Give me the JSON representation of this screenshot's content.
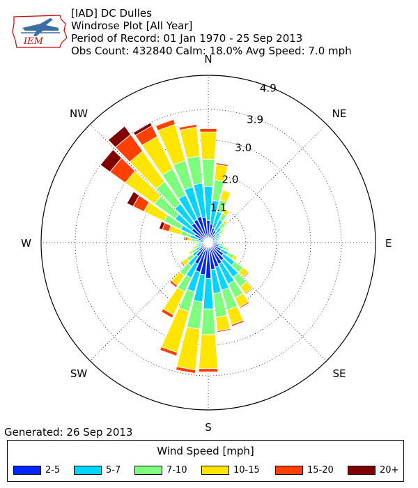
{
  "header": {
    "line1": "[IAD] DC Dulles",
    "line2": "Windrose Plot [All Year]",
    "line3": "Period of Record: 01 Jan 1970 - 25 Sep 2013",
    "line4": "Obs Count: 432840 Calm: 18.0% Avg Speed: 7.0 mph"
  },
  "logo": {
    "text": "IEM",
    "icon": "iem-iowa-logo-icon"
  },
  "footer": {
    "generated": "Generated: 26 Sep 2013"
  },
  "legend": {
    "title": "Wind Speed [mph]"
  },
  "chart_data": {
    "type": "windrose",
    "directions": [
      "N",
      "NE",
      "E",
      "SE",
      "S",
      "SW",
      "W",
      "NW"
    ],
    "radial_ticks": [
      "1.1",
      "2.0",
      "3.0",
      "3.9",
      "4.9"
    ],
    "radial_tick_values": [
      1.1,
      2.0,
      3.0,
      3.9,
      4.9
    ],
    "rmax": 4.9,
    "bins": [
      {
        "label": "2-5",
        "color": "#0026ff"
      },
      {
        "label": "5-7",
        "color": "#00d5ff"
      },
      {
        "label": "7-10",
        "color": "#7dff7d"
      },
      {
        "label": "10-15",
        "color": "#ffe500"
      },
      {
        "label": "15-20",
        "color": "#ff4000"
      },
      {
        "label": "20+",
        "color": "#800000"
      }
    ],
    "sector_directions_deg": [
      0,
      10,
      20,
      30,
      40,
      50,
      60,
      70,
      80,
      90,
      100,
      110,
      120,
      130,
      140,
      150,
      160,
      170,
      180,
      190,
      200,
      210,
      220,
      230,
      240,
      250,
      260,
      270,
      280,
      290,
      300,
      310,
      320,
      330,
      340,
      350
    ],
    "cumulative": [
      [
        0.65,
        1.65,
        2.45,
        3.25,
        3.35,
        3.35
      ],
      [
        0.55,
        1.25,
        1.85,
        2.3,
        2.35,
        2.35
      ],
      [
        0.45,
        0.95,
        1.3,
        1.6,
        1.62,
        1.62
      ],
      [
        0.4,
        0.75,
        0.95,
        1.1,
        1.12,
        1.12
      ],
      [
        0.3,
        0.55,
        0.72,
        0.8,
        0.82,
        0.82
      ],
      [
        0.25,
        0.42,
        0.52,
        0.58,
        0.58,
        0.58
      ],
      [
        0.22,
        0.35,
        0.42,
        0.45,
        0.45,
        0.45
      ],
      [
        0.2,
        0.3,
        0.35,
        0.38,
        0.38,
        0.38
      ],
      [
        0.2,
        0.28,
        0.33,
        0.35,
        0.35,
        0.35
      ],
      [
        0.22,
        0.3,
        0.36,
        0.38,
        0.38,
        0.38
      ],
      [
        0.26,
        0.36,
        0.44,
        0.48,
        0.48,
        0.48
      ],
      [
        0.32,
        0.46,
        0.56,
        0.62,
        0.62,
        0.62
      ],
      [
        0.42,
        0.65,
        0.85,
        0.95,
        0.96,
        0.96
      ],
      [
        0.55,
        0.95,
        1.25,
        1.45,
        1.48,
        1.48
      ],
      [
        0.65,
        1.25,
        1.6,
        1.85,
        1.88,
        1.88
      ],
      [
        0.7,
        1.35,
        1.8,
        2.1,
        2.14,
        2.14
      ],
      [
        0.75,
        1.45,
        2.05,
        2.5,
        2.55,
        2.55
      ],
      [
        0.8,
        1.5,
        2.2,
        2.6,
        2.64,
        2.64
      ],
      [
        1.05,
        1.95,
        2.7,
        3.7,
        3.8,
        3.8
      ],
      [
        0.95,
        1.75,
        2.55,
        3.75,
        3.85,
        3.85
      ],
      [
        0.9,
        1.5,
        2.1,
        3.35,
        3.45,
        3.45
      ],
      [
        0.7,
        1.15,
        1.6,
        2.35,
        2.45,
        2.45
      ],
      [
        0.5,
        0.85,
        1.2,
        1.55,
        1.62,
        1.62
      ],
      [
        0.35,
        0.58,
        0.78,
        0.96,
        1.0,
        1.0
      ],
      [
        0.25,
        0.42,
        0.55,
        0.64,
        0.66,
        0.66
      ],
      [
        0.22,
        0.32,
        0.42,
        0.48,
        0.5,
        0.5
      ],
      [
        0.2,
        0.28,
        0.34,
        0.38,
        0.4,
        0.4
      ],
      [
        0.2,
        0.28,
        0.36,
        0.42,
        0.45,
        0.46
      ],
      [
        0.22,
        0.35,
        0.5,
        0.62,
        0.68,
        0.72
      ],
      [
        0.3,
        0.55,
        0.85,
        1.2,
        1.4,
        1.5
      ],
      [
        0.45,
        0.9,
        1.45,
        2.1,
        2.45,
        2.65
      ],
      [
        0.6,
        1.2,
        1.95,
        3.0,
        3.55,
        3.9
      ],
      [
        0.7,
        1.4,
        2.2,
        3.3,
        3.9,
        4.2
      ],
      [
        0.75,
        1.55,
        2.4,
        3.45,
        3.8,
        3.9
      ],
      [
        0.8,
        1.7,
        2.5,
        3.6,
        3.75,
        3.75
      ],
      [
        0.75,
        1.75,
        2.55,
        3.4,
        3.48,
        3.48
      ]
    ]
  }
}
